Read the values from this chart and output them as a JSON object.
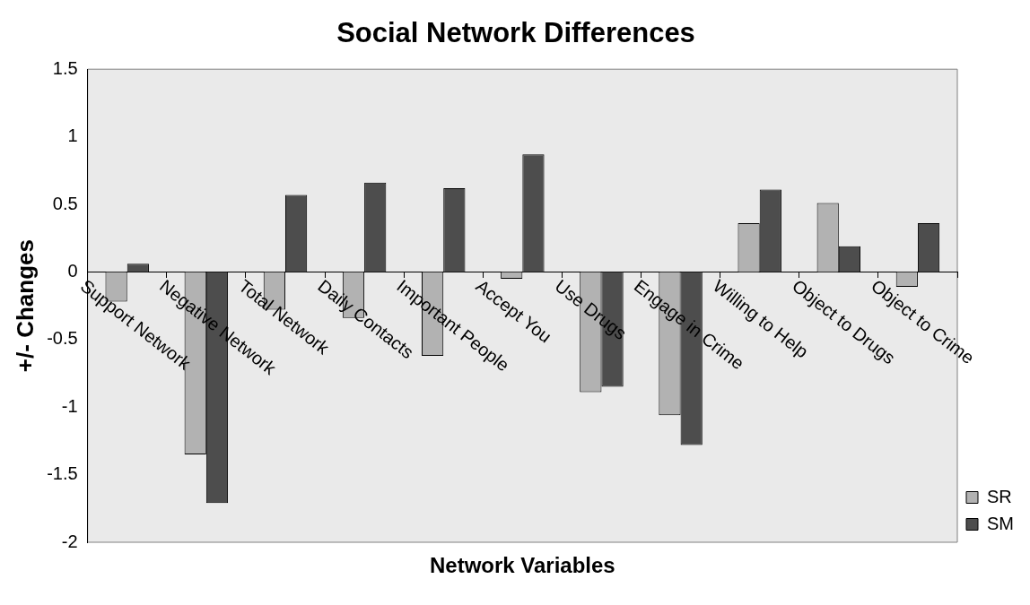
{
  "chart_data": {
    "type": "bar",
    "title": "Social Network Differences",
    "xlabel": "Network Variables",
    "ylabel": "+/- Changes",
    "categories": [
      "Support Network",
      "Negative Network",
      "Total Network",
      "Daily Contacts",
      "Important People",
      "Accept You",
      "Use Drugs",
      "Engage in Crime",
      "Willing to Help",
      "Object to Drugs",
      "Object to Crime"
    ],
    "series": [
      {
        "name": "SR",
        "color": "#b2b2b2",
        "values": [
          -0.22,
          -1.35,
          -0.28,
          -0.34,
          -0.62,
          -0.05,
          -0.89,
          -1.06,
          0.36,
          0.51,
          -0.11
        ]
      },
      {
        "name": "SM",
        "color": "#4d4d4d",
        "values": [
          0.06,
          -1.71,
          0.57,
          0.66,
          0.62,
          0.87,
          -0.85,
          -1.28,
          0.61,
          0.19,
          0.36
        ]
      }
    ],
    "ylim": [
      -2,
      1.5
    ],
    "yticks": [
      -2,
      -1.5,
      -1,
      -0.5,
      0,
      0.5,
      1,
      1.5
    ],
    "grid": false,
    "legend": "bottom right"
  }
}
